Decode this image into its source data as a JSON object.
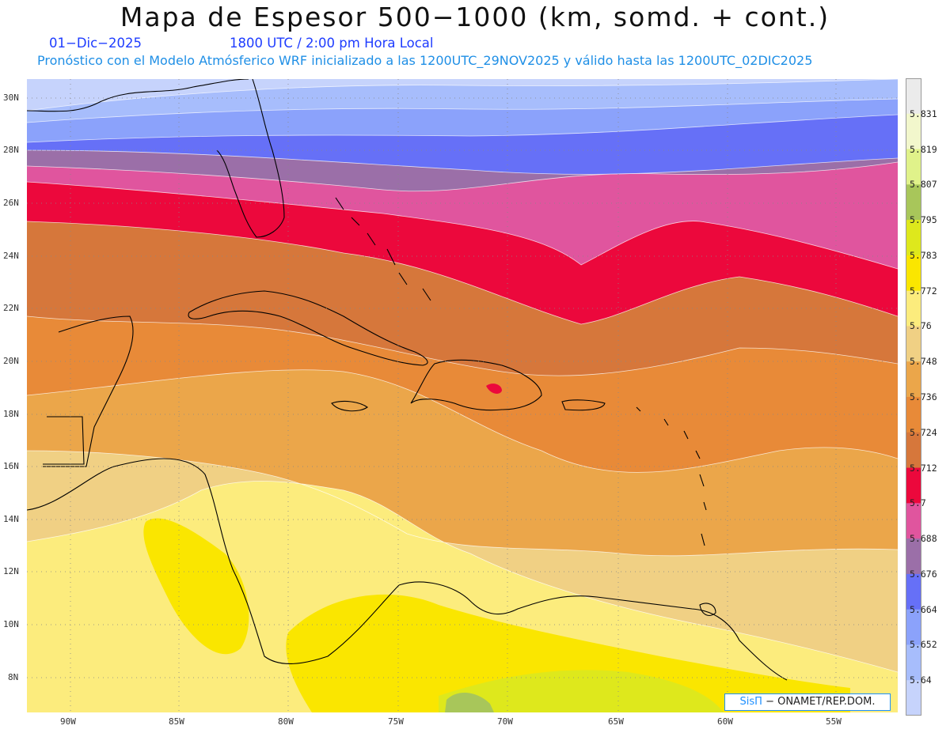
{
  "title": "Mapa de Espesor 500−1000 (km, somd. + cont.)",
  "date_line": "01−Dic−2025",
  "time_line": "1800 UTC / 2:00 pm Hora Local",
  "forecast_line": "Pronóstico con el Modelo Atmósferico WRF inicializado a las 1200UTC_29NOV2025 y válido hasta las  1200UTC_02DIC2025",
  "credit": {
    "brand": "SisΠ",
    "text": "− ONAMET/REP.DOM."
  },
  "lat_labels": [
    "30N",
    "28N",
    "26N",
    "24N",
    "22N",
    "20N",
    "18N",
    "16N",
    "14N",
    "12N",
    "10N",
    "8N"
  ],
  "lon_labels": [
    "90W",
    "85W",
    "80W",
    "75W",
    "70W",
    "65W",
    "60W",
    "55W"
  ],
  "colorbar": {
    "labels": [
      "5.831",
      "5.819",
      "5.807",
      "5.795",
      "5.783",
      "5.772",
      "5.76",
      "5.748",
      "5.736",
      "5.724",
      "5.712",
      "5.7",
      "5.688",
      "5.676",
      "5.664",
      "5.652",
      "5.64"
    ],
    "colors": [
      "#ebebeb",
      "#f2f7cc",
      "#e0f28a",
      "#a8c65a",
      "#dee81c",
      "#fae600",
      "#fcec7d",
      "#f0d084",
      "#eba64a",
      "#e88a38",
      "#d6773b",
      "#ec083c",
      "#e0559e",
      "#9b6fa8",
      "#6670f7",
      "#8ba2fb",
      "#a7bdfc",
      "#c6d3fc"
    ]
  },
  "map": {
    "colors": {
      "c5640": "#c6d3fc",
      "c5652": "#a7bdfc",
      "c5664": "#8ba2fb",
      "c5676": "#6670f7",
      "c5688": "#9b6fa8",
      "c5700": "#e0559e",
      "c5712": "#ec083c",
      "c5724": "#d6773b",
      "c5736": "#e88a38",
      "c5748": "#eba64a",
      "c5760": "#f0d084",
      "c5772": "#fcec7d",
      "c5783": "#fae600",
      "c5795": "#dee81c",
      "c5807": "#a8c65a"
    }
  }
}
